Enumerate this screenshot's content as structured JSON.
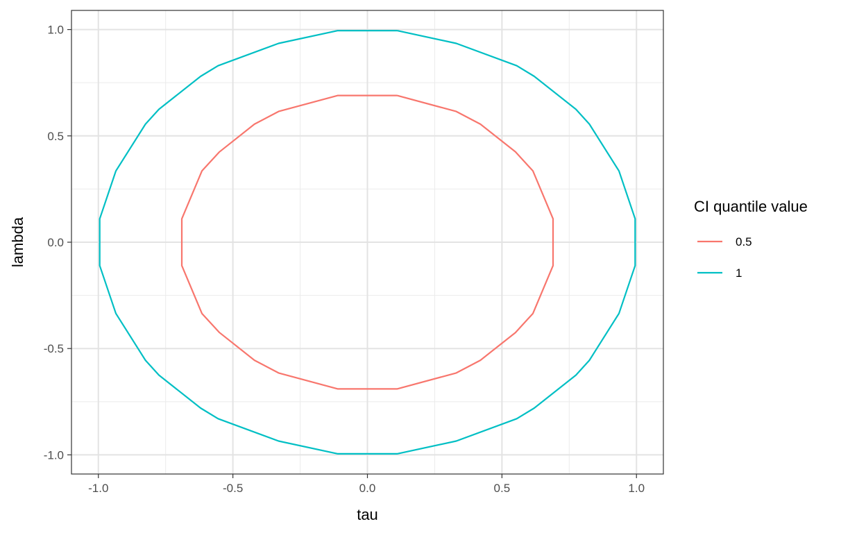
{
  "chart_data": {
    "type": "line",
    "xlabel": "tau",
    "ylabel": "lambda",
    "xlim": [
      -1.1,
      1.1
    ],
    "ylim": [
      -1.09,
      1.09
    ],
    "x_ticks": [
      -1.0,
      -0.5,
      0.0,
      0.5,
      1.0
    ],
    "y_ticks": [
      -1.0,
      -0.5,
      0.0,
      0.5,
      1.0
    ],
    "x_tick_labels": [
      "-1.0",
      "-0.5",
      "0.0",
      "0.5",
      "1.0"
    ],
    "y_tick_labels": [
      "-1.0",
      "-0.5",
      "0.0",
      "0.5",
      "1.0"
    ],
    "grid": true,
    "legend": {
      "title": "CI quantile value",
      "position": "right",
      "entries": [
        "0.5",
        "1"
      ]
    },
    "series": [
      {
        "name": "0.5",
        "color": "#F8766D",
        "points": [
          [
            0.11,
            0.69
          ],
          [
            0.33,
            0.615
          ],
          [
            0.42,
            0.555
          ],
          [
            0.55,
            0.425
          ],
          [
            0.615,
            0.335
          ],
          [
            0.69,
            0.11
          ],
          [
            0.69,
            -0.11
          ],
          [
            0.615,
            -0.335
          ],
          [
            0.55,
            -0.425
          ],
          [
            0.42,
            -0.555
          ],
          [
            0.33,
            -0.615
          ],
          [
            0.11,
            -0.69
          ],
          [
            -0.11,
            -0.69
          ],
          [
            -0.33,
            -0.615
          ],
          [
            -0.42,
            -0.555
          ],
          [
            -0.55,
            -0.425
          ],
          [
            -0.615,
            -0.335
          ],
          [
            -0.69,
            -0.11
          ],
          [
            -0.69,
            0.11
          ],
          [
            -0.615,
            0.335
          ],
          [
            -0.55,
            0.425
          ],
          [
            -0.42,
            0.555
          ],
          [
            -0.33,
            0.615
          ],
          [
            -0.11,
            0.69
          ],
          [
            0.11,
            0.69
          ]
        ]
      },
      {
        "name": "1",
        "color": "#00BFC4",
        "points": [
          [
            0.11,
            0.995
          ],
          [
            0.33,
            0.935
          ],
          [
            0.555,
            0.83
          ],
          [
            0.62,
            0.78
          ],
          [
            0.775,
            0.625
          ],
          [
            0.825,
            0.555
          ],
          [
            0.935,
            0.335
          ],
          [
            0.995,
            0.11
          ],
          [
            0.995,
            -0.11
          ],
          [
            0.935,
            -0.335
          ],
          [
            0.825,
            -0.555
          ],
          [
            0.775,
            -0.625
          ],
          [
            0.62,
            -0.78
          ],
          [
            0.555,
            -0.83
          ],
          [
            0.33,
            -0.935
          ],
          [
            0.11,
            -0.995
          ],
          [
            -0.11,
            -0.995
          ],
          [
            -0.33,
            -0.935
          ],
          [
            -0.555,
            -0.83
          ],
          [
            -0.62,
            -0.78
          ],
          [
            -0.775,
            -0.625
          ],
          [
            -0.825,
            -0.555
          ],
          [
            -0.935,
            -0.335
          ],
          [
            -0.995,
            -0.11
          ],
          [
            -0.995,
            0.11
          ],
          [
            -0.935,
            0.335
          ],
          [
            -0.825,
            0.555
          ],
          [
            -0.775,
            0.625
          ],
          [
            -0.62,
            0.78
          ],
          [
            -0.555,
            0.83
          ],
          [
            -0.33,
            0.935
          ],
          [
            -0.11,
            0.995
          ],
          [
            0.11,
            0.995
          ]
        ]
      }
    ]
  }
}
